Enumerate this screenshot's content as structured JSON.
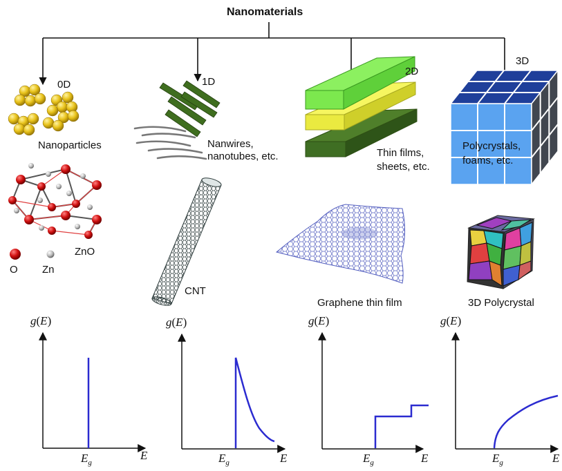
{
  "title": "Nanomaterials",
  "categories": [
    {
      "dim": "0D",
      "caption": "Nanoparticles",
      "example_label": "ZnO",
      "legend": [
        "O",
        "Zn"
      ]
    },
    {
      "dim": "1D",
      "caption_line1": "Nanwires,",
      "caption_line2": "nanotubes, etc.",
      "example_label": "CNT"
    },
    {
      "dim": "2D",
      "caption_line1": "Thin films,",
      "caption_line2": "sheets, etc.",
      "example_label": "Graphene thin film"
    },
    {
      "dim": "3D",
      "caption_line1": "Polycrystals,",
      "caption_line2": "foams, etc.",
      "example_label": "3D Polycrystal"
    }
  ],
  "dos_axis": {
    "y_label": "g",
    "y_paren_open": "(",
    "y_var": "E",
    "y_paren_close": ")",
    "x_label": "E",
    "tick_label": "E",
    "tick_sub": "g"
  },
  "colors": {
    "curve": "#2b2bd0",
    "particle": "#e8c21a",
    "wire": "#3f6e1f",
    "film_top": "#7ce84e",
    "film_mid": "#f2f24a",
    "film_bottom": "#3f6e23",
    "cube_front": "#5aa3f0",
    "cube_top": "#1f3f9a",
    "cube_side": "#41464f",
    "atom_o": "#d01010",
    "atom_zn": "#bbbbbb"
  }
}
